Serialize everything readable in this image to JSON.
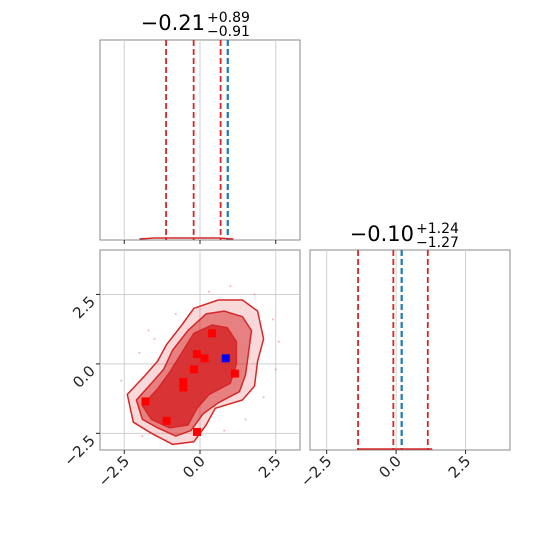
{
  "chart_data": [
    {
      "type": "histogram",
      "panel": "top-left",
      "title": {
        "median": "−0.21",
        "plus": "+0.89",
        "minus": "−0.91"
      },
      "xlim": [
        -3.3,
        3.3
      ],
      "quantile_lines": [
        -1.12,
        0.68
      ],
      "median_line": -0.21,
      "truth_line": 0.85,
      "grid": true
    },
    {
      "type": "contour",
      "panel": "bottom-left",
      "xlim": [
        -3.3,
        3.3
      ],
      "ylim": [
        -3.1,
        4.1
      ],
      "x_ticks": [
        "−2.5",
        "0.0",
        "2.5"
      ],
      "y_ticks": [
        "−2.5",
        "0.0",
        "2.5"
      ],
      "levels": 3,
      "fill_color": "#d62728",
      "markers": [
        {
          "x": -1.8,
          "y": -1.35,
          "color": "#ff0000"
        },
        {
          "x": -1.1,
          "y": -2.05,
          "color": "#ff0000"
        },
        {
          "x": -0.55,
          "y": -0.65,
          "color": "#ff0000"
        },
        {
          "x": -0.55,
          "y": -0.85,
          "color": "#ff0000"
        },
        {
          "x": -0.2,
          "y": -0.2,
          "color": "#ff0000"
        },
        {
          "x": -0.1,
          "y": 0.35,
          "color": "#ff0000"
        },
        {
          "x": 0.15,
          "y": 0.2,
          "color": "#ff0000"
        },
        {
          "x": 0.4,
          "y": 1.1,
          "color": "#ff0000"
        },
        {
          "x": 1.15,
          "y": -0.35,
          "color": "#ff0000"
        },
        {
          "x": -0.1,
          "y": -2.45,
          "color": "#ff0000"
        },
        {
          "x": 0.85,
          "y": 0.2,
          "color": "#0000ff"
        }
      ],
      "grid": true
    },
    {
      "type": "histogram",
      "panel": "bottom-right",
      "title": {
        "median": "−0.10",
        "plus": "+1.24",
        "minus": "−1.27"
      },
      "xlim": [
        -3.1,
        4.1
      ],
      "x_ticks": [
        "−2.5",
        "0.0",
        "2.5"
      ],
      "quantile_lines": [
        -1.37,
        1.14
      ],
      "median_line": -0.1,
      "truth_line": 0.2,
      "grid": true
    }
  ]
}
